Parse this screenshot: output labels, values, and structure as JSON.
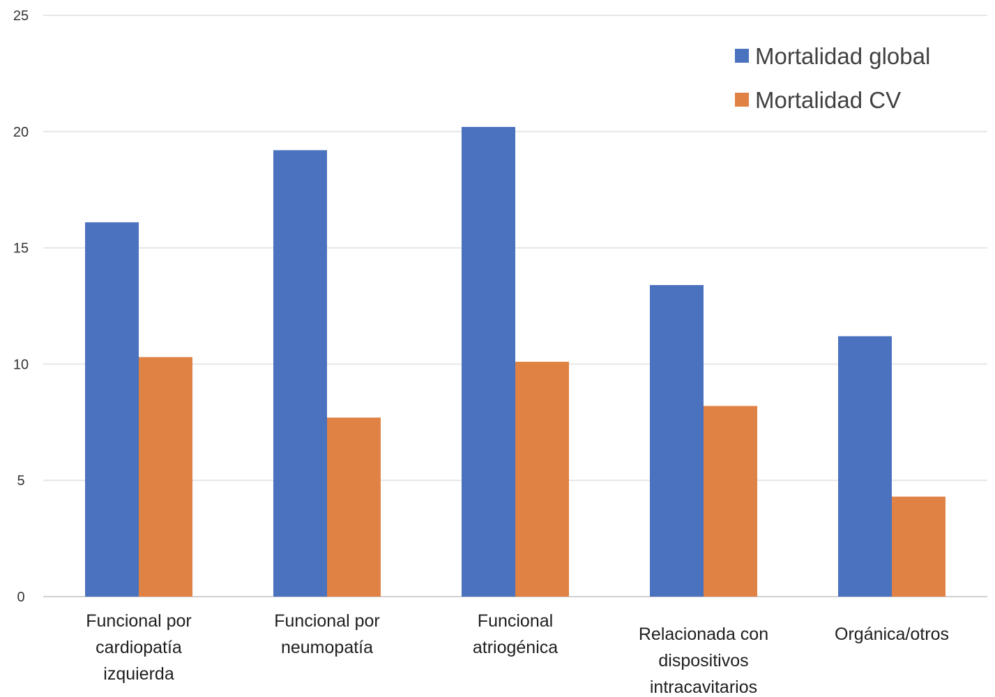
{
  "chart_data": {
    "type": "bar",
    "title": "",
    "xlabel": "",
    "ylabel": "",
    "ylim": [
      0,
      25
    ],
    "yticks": [
      0,
      5,
      10,
      15,
      20,
      25
    ],
    "grid": true,
    "legend_position": "top-right",
    "categories": [
      [
        "Funcional por",
        "cardiopatía",
        "izquierda"
      ],
      [
        "Funcional por",
        "neumopatía"
      ],
      [
        "Funcional",
        "atriogénica"
      ],
      [
        "Relacionada con",
        "dispositivos",
        "intracavitarios"
      ],
      [
        "Orgánica/otros"
      ]
    ],
    "series": [
      {
        "name": "Mortalidad global",
        "color": "#4a72bf",
        "values": [
          16.1,
          19.2,
          20.2,
          13.4,
          11.2
        ]
      },
      {
        "name": "Mortalidad CV",
        "color": "#e08244",
        "values": [
          10.3,
          7.7,
          10.1,
          8.2,
          4.3
        ]
      }
    ]
  }
}
